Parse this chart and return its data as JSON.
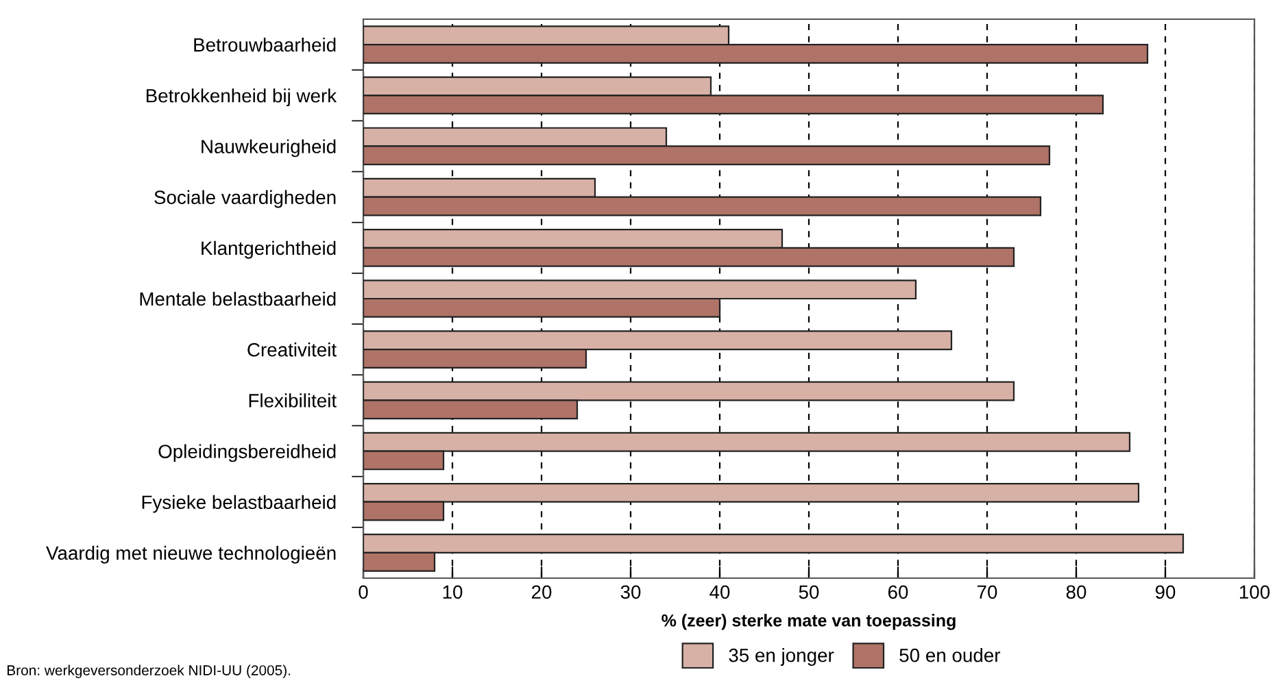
{
  "chart_data": {
    "type": "bar",
    "orientation": "horizontal",
    "xlabel": "% (zeer) sterke mate van toepassing",
    "categories": [
      "Betrouwbaarheid",
      "Betrokkenheid bij werk",
      "Nauwkeurigheid",
      "Sociale vaardigheden",
      "Klantgerichtheid",
      "Mentale belastbaarheid",
      "Creativiteit",
      "Flexibiliteit",
      "Opleidingsbereidheid",
      "Fysieke belastbaarheid",
      "Vaardig met nieuwe technologieën"
    ],
    "series": [
      {
        "name": "35 en jonger",
        "color": "#d7b1a6",
        "values": [
          41,
          39,
          34,
          26,
          47,
          62,
          66,
          73,
          86,
          87,
          92
        ]
      },
      {
        "name": "50 en ouder",
        "color": "#b07367",
        "values": [
          88,
          83,
          77,
          76,
          73,
          40,
          25,
          24,
          9,
          9,
          8
        ]
      }
    ],
    "xlim": [
      0,
      100
    ],
    "xticks": [
      0,
      10,
      20,
      30,
      40,
      50,
      60,
      70,
      80,
      90,
      100
    ],
    "grid": "x",
    "line_style": "dashed",
    "legend": "bottom",
    "annotations": [
      "Bron: werkgeversonderzoek NIDI-UU (2005)."
    ]
  }
}
